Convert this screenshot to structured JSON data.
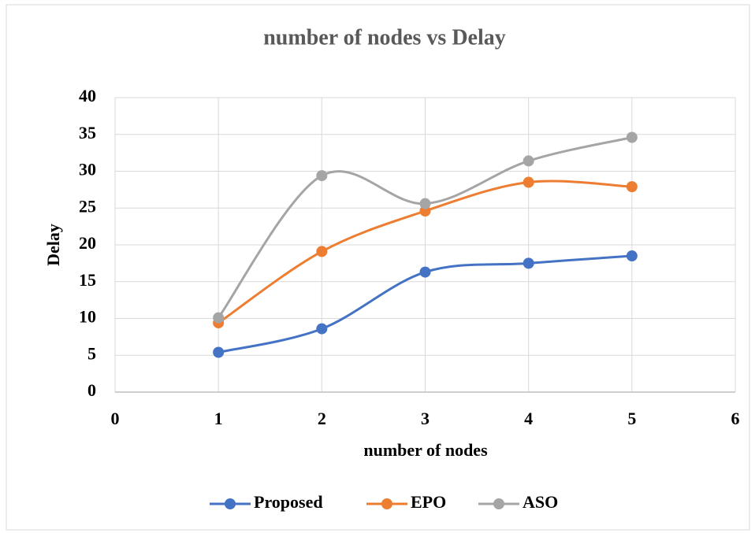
{
  "chart_data": {
    "type": "scatter_smooth",
    "title": "number of nodes vs Delay",
    "x_label": "number of nodes",
    "y_label": "Delay",
    "x": [
      1,
      2,
      3,
      4,
      5
    ],
    "series": [
      {
        "name": "Proposed",
        "color": "#4472c4",
        "values": [
          5.4,
          8.6,
          16.3,
          17.5,
          18.5
        ]
      },
      {
        "name": "EPO",
        "color": "#ed7d31",
        "values": [
          9.4,
          19.1,
          24.6,
          28.5,
          27.9
        ]
      },
      {
        "name": "ASO",
        "color": "#a5a5a5",
        "values": [
          10.1,
          29.4,
          25.6,
          31.4,
          34.6
        ]
      }
    ],
    "xlim": [
      0,
      6
    ],
    "xticks": [
      0,
      1,
      2,
      3,
      4,
      5,
      6
    ],
    "ylim": [
      0,
      40
    ],
    "yticks": [
      0,
      5,
      10,
      15,
      20,
      25,
      30,
      35,
      40
    ],
    "grid": true,
    "legend": "bottom"
  }
}
